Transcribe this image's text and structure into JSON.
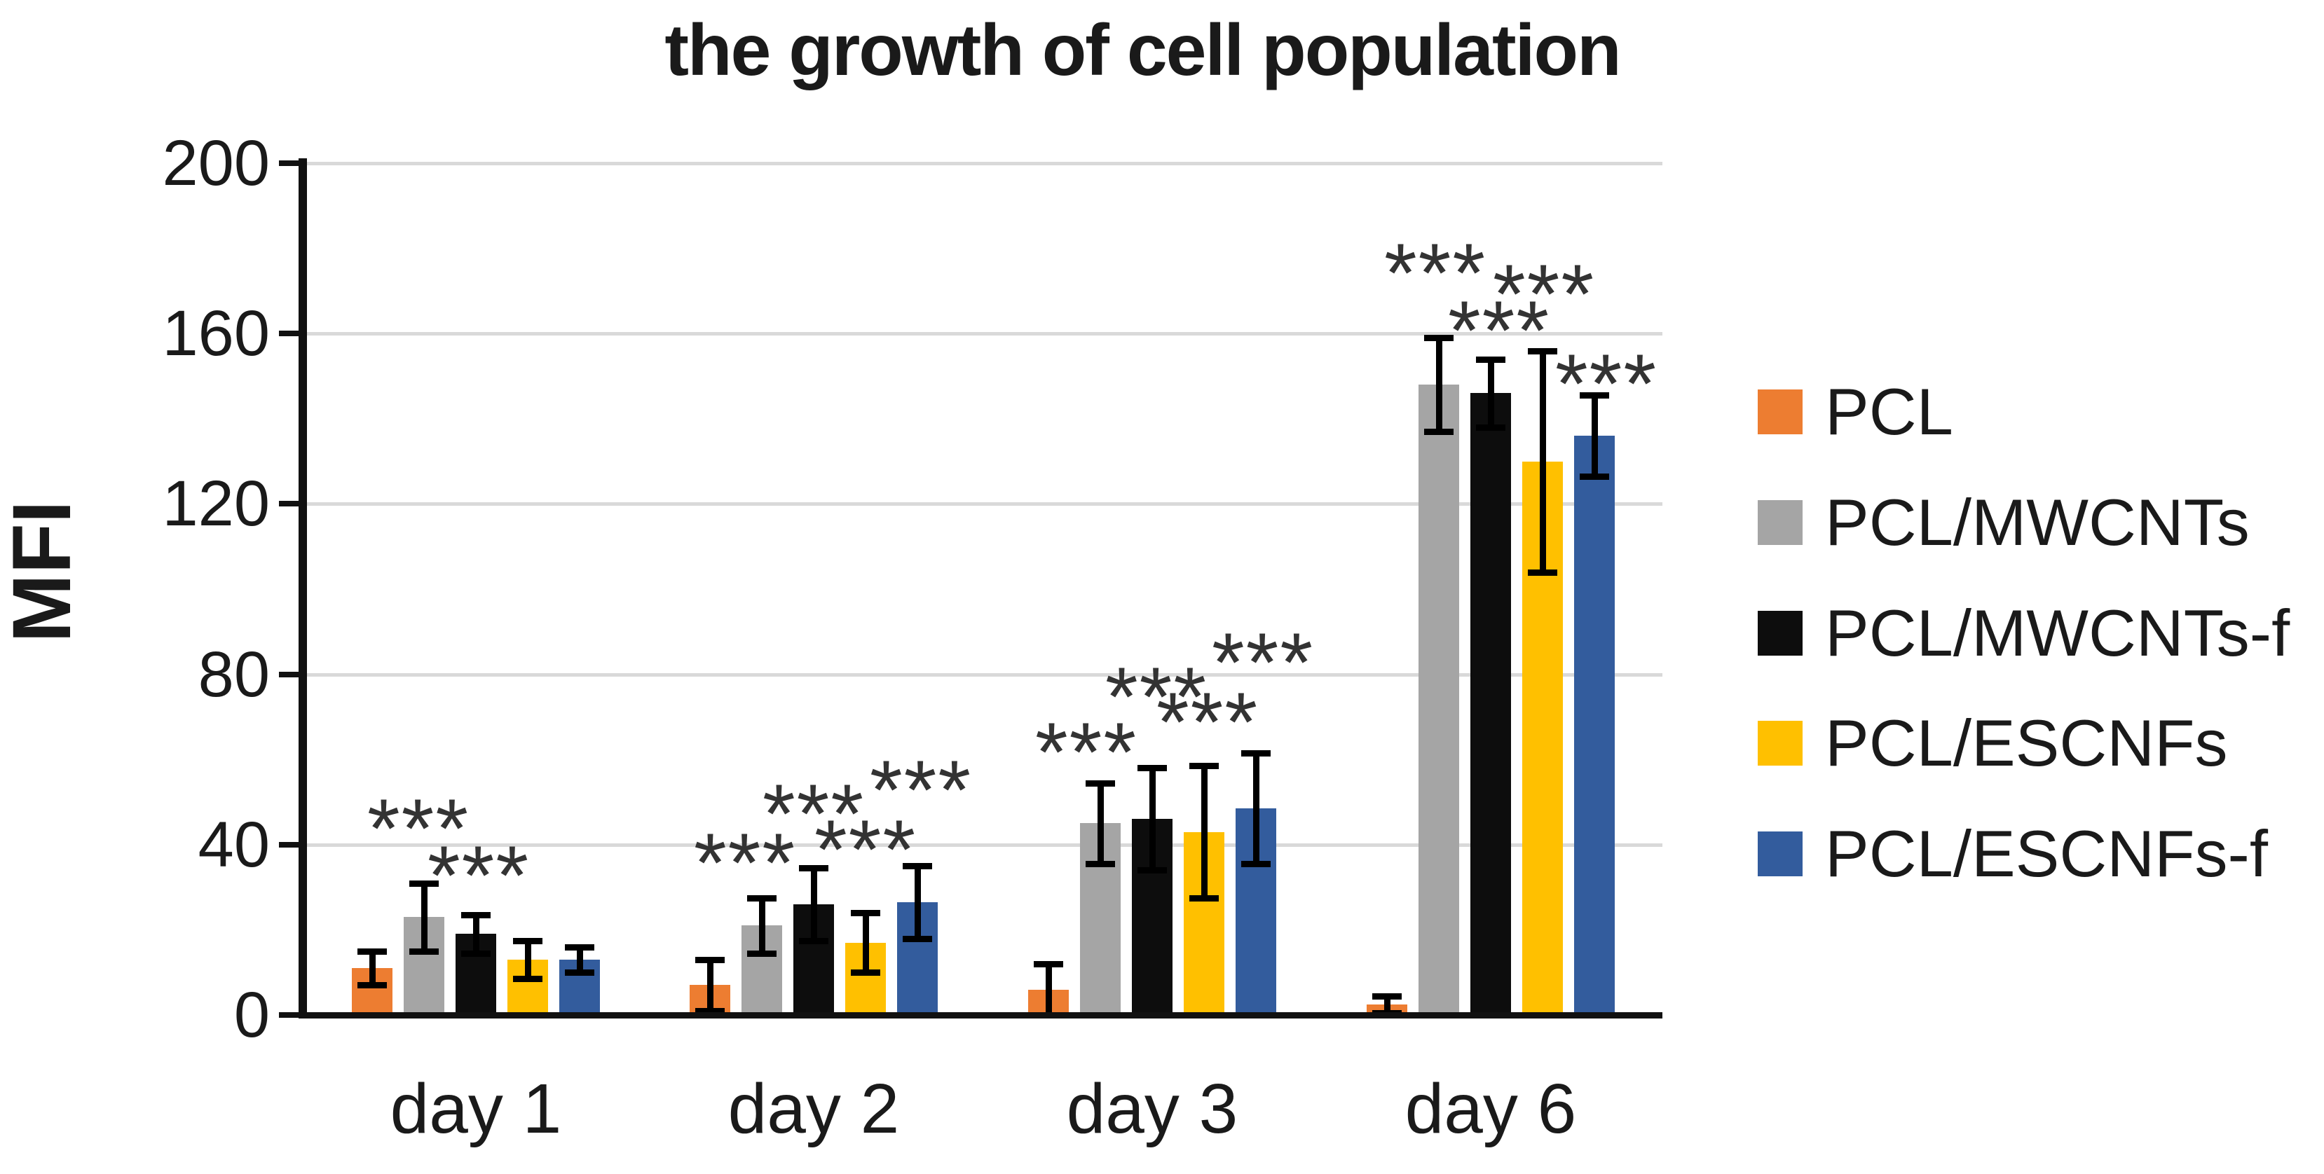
{
  "title": "the growth of cell population",
  "chart_data": {
    "type": "bar",
    "title": "the growth of cell population",
    "xlabel": "",
    "ylabel": "MFI",
    "ylim": [
      0,
      200
    ],
    "yticks": [
      0,
      40,
      80,
      120,
      160,
      200
    ],
    "grid": true,
    "legend_position": "right",
    "categories": [
      "day 1",
      "day 2",
      "day 3",
      "day 6"
    ],
    "series": [
      {
        "name": "PCL",
        "color": "#ED7D31",
        "values": [
          11,
          7,
          6,
          2.5
        ],
        "errors": [
          4,
          6,
          6,
          2
        ]
      },
      {
        "name": "PCL/MWCNTs",
        "color": "#A5A5A5",
        "values": [
          23,
          21,
          45,
          148
        ],
        "errors": [
          8,
          6.5,
          9.5,
          11
        ]
      },
      {
        "name": "PCL/MWCNTs-f",
        "color": "#0D0D0D",
        "values": [
          19,
          26,
          46,
          146
        ],
        "errors": [
          4.5,
          8.5,
          12,
          8
        ]
      },
      {
        "name": "PCL/ESCNFs",
        "color": "#FFC000",
        "values": [
          13,
          17,
          43,
          130
        ],
        "errors": [
          4.5,
          7,
          15.5,
          26
        ]
      },
      {
        "name": "PCL/ESCNFs-f",
        "color": "#335C9D",
        "values": [
          13,
          26.5,
          48.5,
          136
        ],
        "errors": [
          3,
          8.5,
          13,
          9.5
        ]
      }
    ],
    "significance_markers": {
      "symbol": "***",
      "items": [
        {
          "category_index": 0,
          "series_index": 1,
          "level": 49,
          "dx": -8
        },
        {
          "category_index": 0,
          "series_index": 2,
          "level": 38,
          "dx": 4
        },
        {
          "category_index": 1,
          "series_index": 1,
          "level": 41,
          "dx": -24
        },
        {
          "category_index": 1,
          "series_index": 2,
          "level": 52.5,
          "dx": 0
        },
        {
          "category_index": 1,
          "series_index": 3,
          "level": 44,
          "dx": 0
        },
        {
          "category_index": 1,
          "series_index": 4,
          "level": 58,
          "dx": 5
        },
        {
          "category_index": 2,
          "series_index": 1,
          "level": 67,
          "dx": -20
        },
        {
          "category_index": 2,
          "series_index": 2,
          "level": 80,
          "dx": 6
        },
        {
          "category_index": 2,
          "series_index": 3,
          "level": 74,
          "dx": 5
        },
        {
          "category_index": 2,
          "series_index": 4,
          "level": 88,
          "dx": 10
        },
        {
          "category_index": 3,
          "series_index": 1,
          "level": 179.5,
          "dx": -5
        },
        {
          "category_index": 3,
          "series_index": 2,
          "level": 166,
          "dx": 12
        },
        {
          "category_index": 3,
          "series_index": 3,
          "level": 174.5,
          "dx": 2
        },
        {
          "category_index": 3,
          "series_index": 4,
          "level": 153.5,
          "dx": 17
        }
      ]
    }
  }
}
